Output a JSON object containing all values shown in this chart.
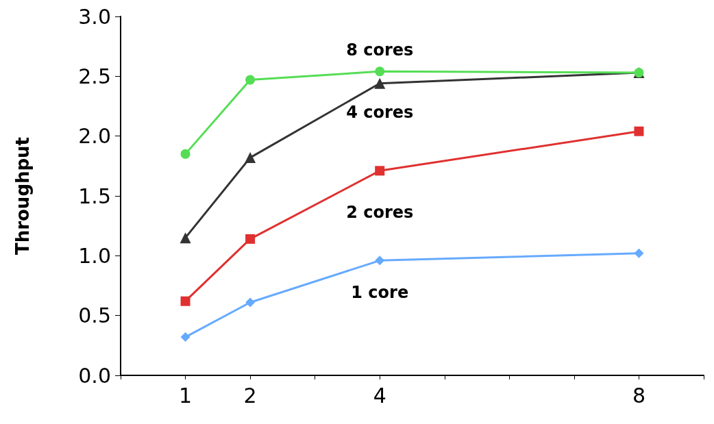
{
  "chart_data": {
    "type": "line",
    "ylabel": "Throughput",
    "xlim": [
      0,
      9
    ],
    "xticks": [
      {
        "value": 0,
        "label": null
      },
      1,
      2,
      {
        "value": 3,
        "label": null
      },
      4,
      {
        "value": 5,
        "label": null
      },
      {
        "value": 6,
        "label": null
      },
      {
        "value": 7,
        "label": null
      },
      8,
      {
        "value": 9,
        "label": null
      }
    ],
    "ylim": [
      0,
      3
    ],
    "yticks": [
      {
        "value": 0,
        "label": "0.0"
      },
      0.5,
      {
        "value": 1,
        "label": "1.0"
      },
      1.5,
      {
        "value": 2,
        "label": "2.0"
      },
      2.5,
      {
        "value": 3,
        "label": "3.0"
      }
    ],
    "grid": false,
    "legend": false,
    "x": [
      1,
      2,
      4,
      8
    ],
    "series": [
      {
        "name": "8 cores",
        "color": "#55dd55",
        "marker": "circle",
        "values": [
          1.85,
          2.47,
          2.54,
          2.53
        ]
      },
      {
        "name": "4 cores",
        "color": "#333333",
        "marker": "triangle",
        "values": [
          1.15,
          1.82,
          2.44,
          2.53
        ]
      },
      {
        "name": "2 cores",
        "color": "#e03030",
        "marker": "square",
        "values": [
          0.62,
          1.14,
          1.71,
          2.04
        ]
      },
      {
        "name": "1 core",
        "color": "#66aaff",
        "marker": "diamond",
        "values": [
          0.32,
          0.61,
          0.96,
          1.02
        ]
      }
    ]
  }
}
